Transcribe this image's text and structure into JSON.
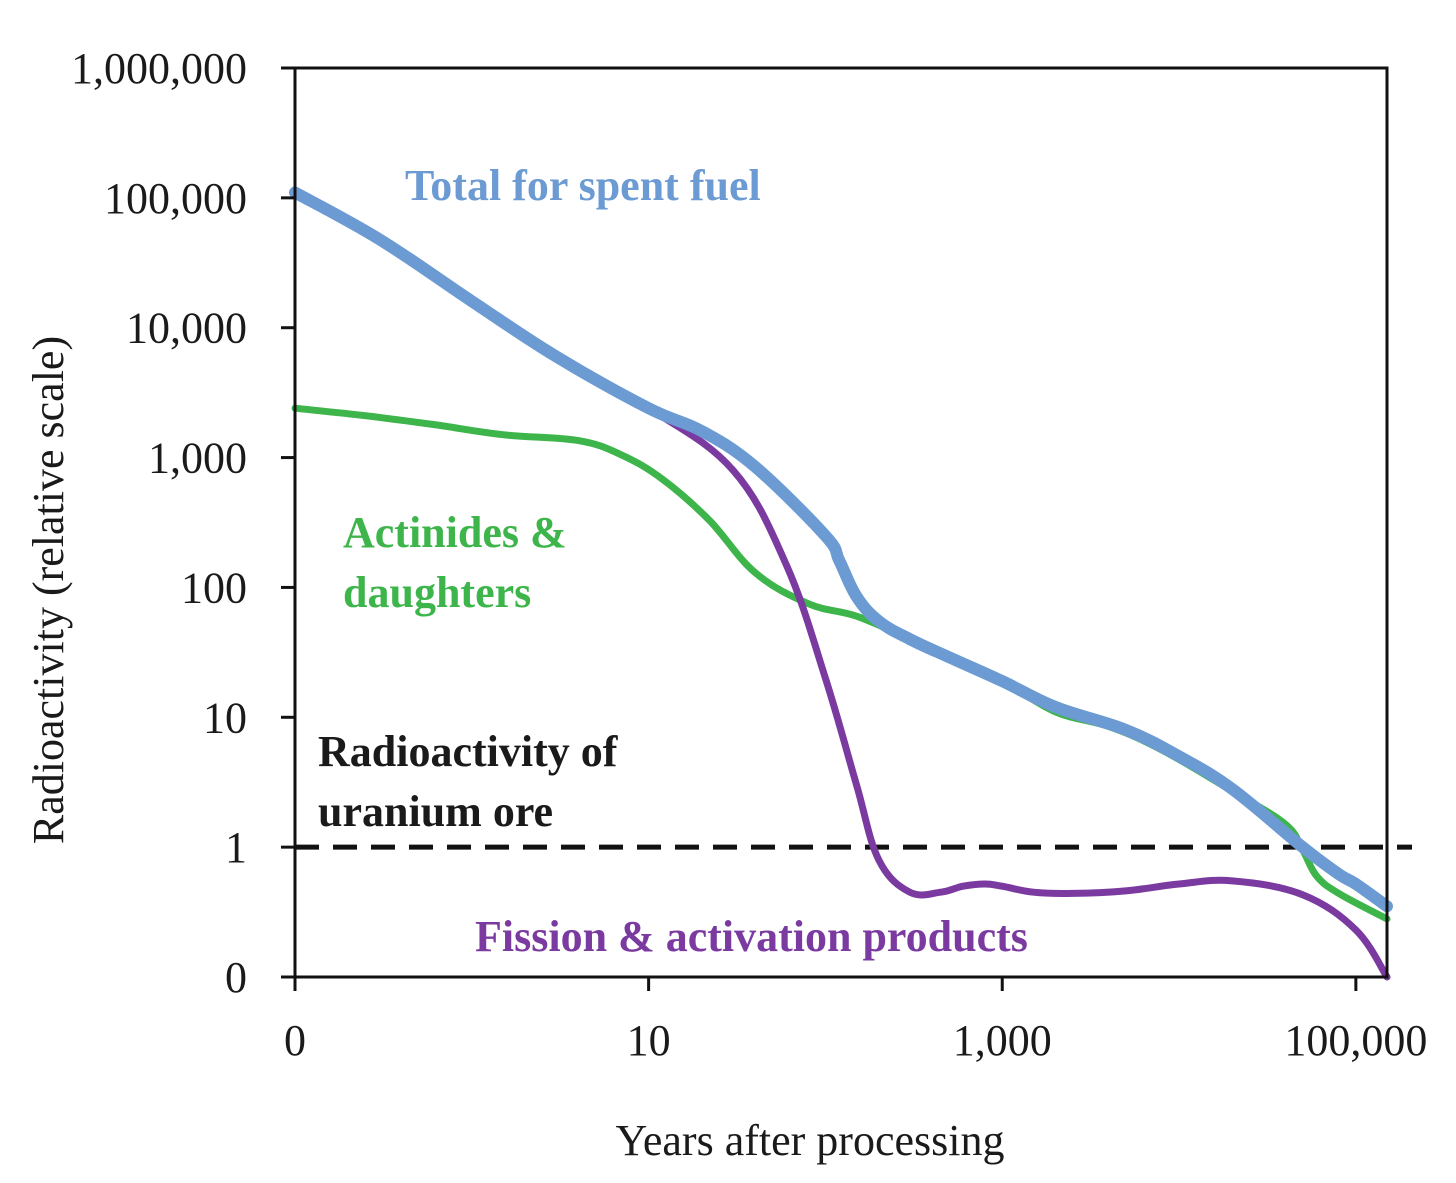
{
  "chart_data": {
    "type": "line",
    "title": "",
    "xlabel": "Years after processing",
    "ylabel": "Radioactivity (relative scale)",
    "x_scale": "log",
    "y_scale": "log",
    "xlim": [
      1,
      1500000
    ],
    "ylim": [
      0.1,
      1000000
    ],
    "x_ticks": [
      {
        "value": 1,
        "label": "0"
      },
      {
        "value": 100,
        "label": "10"
      },
      {
        "value": 10000,
        "label": "1,000"
      },
      {
        "value": 1000000,
        "label": "100,000"
      }
    ],
    "y_ticks": [
      {
        "value": 0.1,
        "label": "0"
      },
      {
        "value": 1,
        "label": "1"
      },
      {
        "value": 10,
        "label": "10"
      },
      {
        "value": 100,
        "label": "100"
      },
      {
        "value": 1000,
        "label": "1,000"
      },
      {
        "value": 10000,
        "label": "10,000"
      },
      {
        "value": 100000,
        "label": "100,000"
      },
      {
        "value": 1000000,
        "label": "1,000,000"
      }
    ],
    "reference_line": {
      "value": 1,
      "label": "Radioactivity of uranium ore",
      "label_lines": [
        "Radioactivity of",
        "uranium ore"
      ],
      "style": "dashed",
      "color": "#111111"
    },
    "series": [
      {
        "name": "Actinides & daughters",
        "label_lines": [
          "Actinides &",
          "daughters"
        ],
        "color": "#3db54a",
        "x": [
          1,
          2.5,
          6,
          15,
          40,
          70,
          120,
          220,
          400,
          800,
          1500,
          3000,
          5000,
          10000,
          20000,
          40000,
          80000,
          200000,
          400000,
          500000,
          600000,
          800000,
          1500000
        ],
        "y": [
          2400,
          2100,
          1800,
          1500,
          1350,
          1050,
          680,
          330,
          130,
          75,
          60,
          40,
          29,
          19,
          11,
          8.5,
          5.6,
          2.7,
          1.5,
          0.95,
          0.6,
          0.44,
          0.28
        ]
      },
      {
        "name": "Fission & activation products",
        "label_lines": [
          "Fission & activation products"
        ],
        "color": "#7b3aa0",
        "x": [
          1,
          3,
          10,
          30,
          100,
          300,
          600,
          1000,
          1500,
          2000,
          3000,
          4500,
          6000,
          8000,
          10000,
          15000,
          25000,
          50000,
          100000,
          200000,
          500000,
          1000000,
          1500000
        ],
        "y": [
          110000,
          48000,
          16000,
          6000,
          2400,
          800,
          150,
          20,
          3,
          0.8,
          0.45,
          0.45,
          0.5,
          0.52,
          0.5,
          0.45,
          0.44,
          0.46,
          0.52,
          0.55,
          0.43,
          0.23,
          0.1
        ]
      },
      {
        "name": "Total for spent fuel",
        "label_lines": [
          "Total for spent fuel"
        ],
        "color": "#6b9bd2",
        "x": [
          1,
          3,
          10,
          30,
          100,
          200,
          400,
          1000,
          1200,
          1500,
          2000,
          3000,
          5000,
          10000,
          20000,
          50000,
          100000,
          200000,
          500000,
          800000,
          1000000,
          1500000
        ],
        "y": [
          110000,
          48000,
          16000,
          6000,
          2400,
          1600,
          850,
          250,
          160,
          85,
          55,
          40,
          29,
          19,
          12,
          8,
          5,
          2.8,
          1,
          0.62,
          0.52,
          0.35
        ]
      }
    ]
  }
}
